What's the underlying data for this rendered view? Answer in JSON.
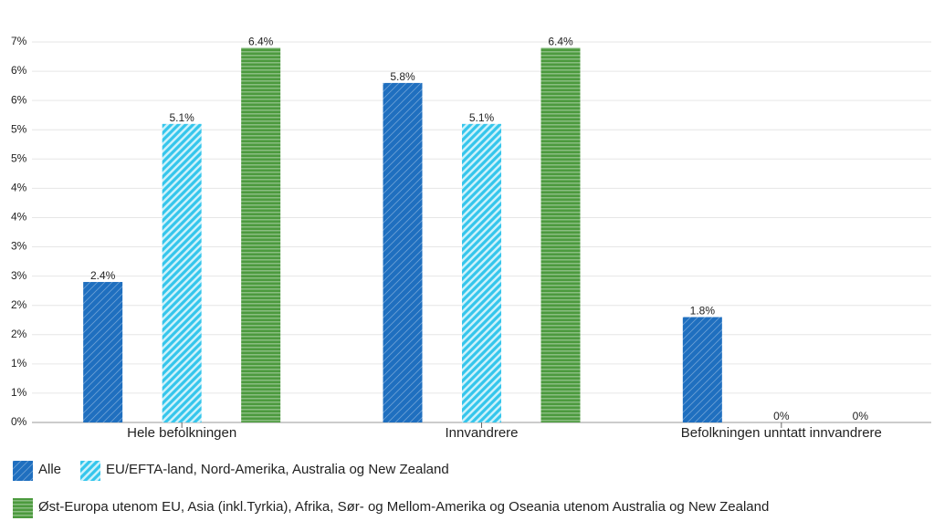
{
  "chart_data": {
    "type": "bar",
    "categories": [
      "Hele befolkningen",
      "Innvandrere",
      "Befolkningen unntatt innvandrere"
    ],
    "series": [
      {
        "name": "Alle",
        "color": "#1f6fbf",
        "pattern": "diagonal",
        "values": [
          2.4,
          5.8,
          1.8
        ],
        "value_labels": [
          "2.4%",
          "5.8%",
          "1.8%"
        ]
      },
      {
        "name": "EU/EFTA-land, Nord-Amerika, Australia og New Zealand",
        "color": "#35c6ec",
        "pattern": "diagonal",
        "values": [
          5.1,
          5.1,
          0
        ],
        "value_labels": [
          "5.1%",
          "5.1%",
          "0%"
        ]
      },
      {
        "name": "Øst-Europa utenom EU, Asia (inkl.Tyrkia), Afrika, Sør- og Mellom-Amerika og Oseania utenom Australia og New Zealand",
        "color": "#4c9a3e",
        "pattern": "horizontal",
        "values": [
          6.4,
          6.4,
          0
        ],
        "value_labels": [
          "6.4%",
          "6.4%",
          "0%"
        ]
      }
    ],
    "ylim": [
      0,
      6.5
    ],
    "yticks": [
      {
        "value": 0,
        "label": "0%"
      },
      {
        "value": 0.5,
        "label": "1%"
      },
      {
        "value": 1,
        "label": "1%"
      },
      {
        "value": 1.5,
        "label": "2%"
      },
      {
        "value": 2,
        "label": "2%"
      },
      {
        "value": 2.5,
        "label": "3%"
      },
      {
        "value": 3,
        "label": "3%"
      },
      {
        "value": 3.5,
        "label": "4%"
      },
      {
        "value": 4,
        "label": "4%"
      },
      {
        "value": 4.5,
        "label": "5%"
      },
      {
        "value": 5,
        "label": "5%"
      },
      {
        "value": 5.5,
        "label": "6%"
      },
      {
        "value": 6,
        "label": "6%"
      },
      {
        "value": 6.5,
        "label": "7%"
      }
    ],
    "grid": true
  }
}
